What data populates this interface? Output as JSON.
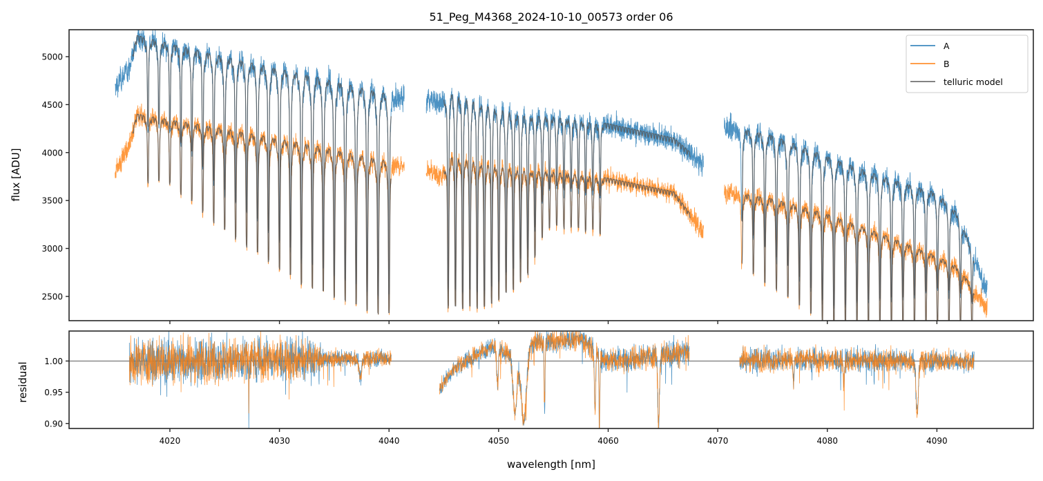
{
  "chart_data": [
    {
      "type": "line",
      "panel": "flux",
      "title": "51_Peg_M4368_2024-10-10_00573  order 06",
      "xlabel": "",
      "ylabel": "flux [ADU]",
      "xlim": [
        4010.8,
        4098.8
      ],
      "ylim": [
        2247,
        5281
      ],
      "yticks": [
        2500,
        3000,
        3500,
        4000,
        4500,
        5000
      ],
      "yticklabels": [
        "2500",
        "3000",
        "3500",
        "4000",
        "4500",
        "5000"
      ],
      "xticks": [
        4020,
        4030,
        4040,
        4050,
        4060,
        4070,
        4080,
        4090
      ],
      "grid": false,
      "legend": {
        "position": "top-right",
        "entries": [
          "A",
          "B",
          "telluric model"
        ]
      },
      "segments": [
        {
          "x_range": [
            4015.0,
            4041.4
          ],
          "continuum_A": [
            [
              4015.0,
              4700
            ],
            [
              4016.3,
              4900
            ],
            [
              4017.0,
              5220
            ],
            [
              4025.0,
              5000
            ],
            [
              4033.0,
              4800
            ],
            [
              4041.2,
              4580
            ]
          ],
          "continuum_B": [
            [
              4015.0,
              3800
            ],
            [
              4016.3,
              4100
            ],
            [
              4017.0,
              4400
            ],
            [
              4025.0,
              4250
            ],
            [
              4033.0,
              4080
            ],
            [
              4041.2,
              3880
            ]
          ],
          "line_start": 4018.0,
          "line_spacing": 1.0,
          "line_count": 23,
          "line_min_B": [
            [
              4018.0,
              3900
            ],
            [
              4025.0,
              3200
            ],
            [
              4032.0,
              2650
            ],
            [
              4039.0,
              2330
            ]
          ]
        },
        {
          "x_range": [
            4043.4,
            4068.7
          ],
          "continuum_A": [
            [
              4043.4,
              4580
            ],
            [
              4044.8,
              4520
            ],
            [
              4045.5,
              4700
            ],
            [
              4052.0,
              4450
            ],
            [
              4058.0,
              4350
            ],
            [
              4066.0,
              4150
            ],
            [
              4068.5,
              3900
            ]
          ],
          "continuum_B": [
            [
              4043.4,
              3830
            ],
            [
              4044.8,
              3750
            ],
            [
              4045.5,
              4020
            ],
            [
              4052.0,
              3860
            ],
            [
              4058.0,
              3780
            ],
            [
              4066.0,
              3590
            ],
            [
              4068.5,
              3200
            ]
          ],
          "line_start": 4045.4,
          "line_spacing": 0.66,
          "line_count": 22,
          "line_min_B": [
            [
              4045.4,
              2400
            ],
            [
              4049.0,
              2400
            ],
            [
              4052.5,
              2700
            ],
            [
              4055.0,
              3400
            ],
            [
              4059.0,
              3800
            ]
          ]
        },
        {
          "x_range": [
            4070.6,
            4094.6
          ],
          "continuum_A": [
            [
              4070.6,
              4280
            ],
            [
              4075.0,
              4180
            ],
            [
              4080.0,
              3960
            ],
            [
              4085.0,
              3750
            ],
            [
              4090.0,
              3580
            ],
            [
              4092.0,
              3350
            ],
            [
              4094.4,
              2600
            ]
          ],
          "continuum_B": [
            [
              4070.6,
              3600
            ],
            [
              4075.0,
              3520
            ],
            [
              4080.0,
              3360
            ],
            [
              4085.0,
              3150
            ],
            [
              4090.0,
              2920
            ],
            [
              4092.0,
              2800
            ],
            [
              4094.4,
              2400
            ]
          ],
          "line_start": 4072.2,
          "line_spacing": 1.05,
          "line_count": 21,
          "line_min_B": [
            [
              4072.2,
              2850
            ],
            [
              4080.0,
              2200
            ],
            [
              4093.0,
              2200
            ]
          ]
        }
      ],
      "series": [
        {
          "name": "A",
          "color": "#1f77b4"
        },
        {
          "name": "B",
          "color": "#ff7f0e"
        },
        {
          "name": "telluric model",
          "color": "#595959"
        }
      ]
    },
    {
      "type": "line",
      "panel": "residual",
      "xlabel": "wavelength [nm]",
      "ylabel": "residual",
      "xlim": [
        4010.8,
        4098.8
      ],
      "ylim": [
        0.892,
        1.048
      ],
      "yticks": [
        0.9,
        0.95,
        1.0
      ],
      "yticklabels": [
        "0.90",
        "0.95",
        "1.00"
      ],
      "xticks": [
        4020,
        4030,
        4040,
        4050,
        4060,
        4070,
        4080,
        4090
      ],
      "xticklabels": [
        "4020",
        "4030",
        "4040",
        "4050",
        "4060",
        "4070",
        "4080",
        "4090"
      ],
      "reference_line": 1.0,
      "segments": [
        {
          "x_range": [
            4016.3,
            4040.2
          ],
          "noise": [
            [
              4016.3,
              0.035
            ],
            [
              4033.0,
              0.03
            ],
            [
              4034.0,
              0.012
            ],
            [
              4040.2,
              0.012
            ]
          ],
          "offset": [
            [
              4016.3,
              1.0
            ],
            [
              4040.2,
              1.005
            ]
          ]
        },
        {
          "x_range": [
            4044.6,
            4067.4
          ],
          "noise": [
            [
              4044.6,
              0.012
            ],
            [
              4067.4,
              0.02
            ]
          ],
          "offset": [
            [
              4044.6,
              0.955
            ],
            [
              4046.0,
              0.99
            ],
            [
              4049.5,
              1.025
            ],
            [
              4051.0,
              1.01
            ],
            [
              4053.0,
              1.03
            ],
            [
              4057.5,
              1.035
            ],
            [
              4060.0,
              1.0
            ],
            [
              4067.4,
              1.015
            ]
          ]
        },
        {
          "x_range": [
            4072.0,
            4093.4
          ],
          "noise": [
            [
              4072.0,
              0.018
            ],
            [
              4093.4,
              0.015
            ]
          ],
          "offset": [
            [
              4072.0,
              1.003
            ],
            [
              4093.4,
              1.0
            ]
          ]
        }
      ],
      "dips": [
        [
          4051.5,
          0.9,
          0.35
        ],
        [
          4052.3,
          0.88,
          0.5
        ],
        [
          4054.2,
          0.9,
          0.08
        ],
        [
          4058.8,
          0.9,
          0.12
        ],
        [
          4059.2,
          0.88,
          0.08
        ],
        [
          4064.6,
          0.89,
          0.15
        ],
        [
          4049.9,
          0.94,
          0.15
        ],
        [
          4037.4,
          0.97,
          0.25
        ],
        [
          4088.2,
          0.91,
          0.2
        ],
        [
          4076.9,
          0.96,
          0.1
        ],
        [
          4081.5,
          0.965,
          0.12
        ],
        [
          4027.2,
          0.91,
          0.03
        ]
      ],
      "series": [
        {
          "name": "A",
          "color": "#1f77b4"
        },
        {
          "name": "B",
          "color": "#ff7f0e"
        }
      ]
    }
  ]
}
